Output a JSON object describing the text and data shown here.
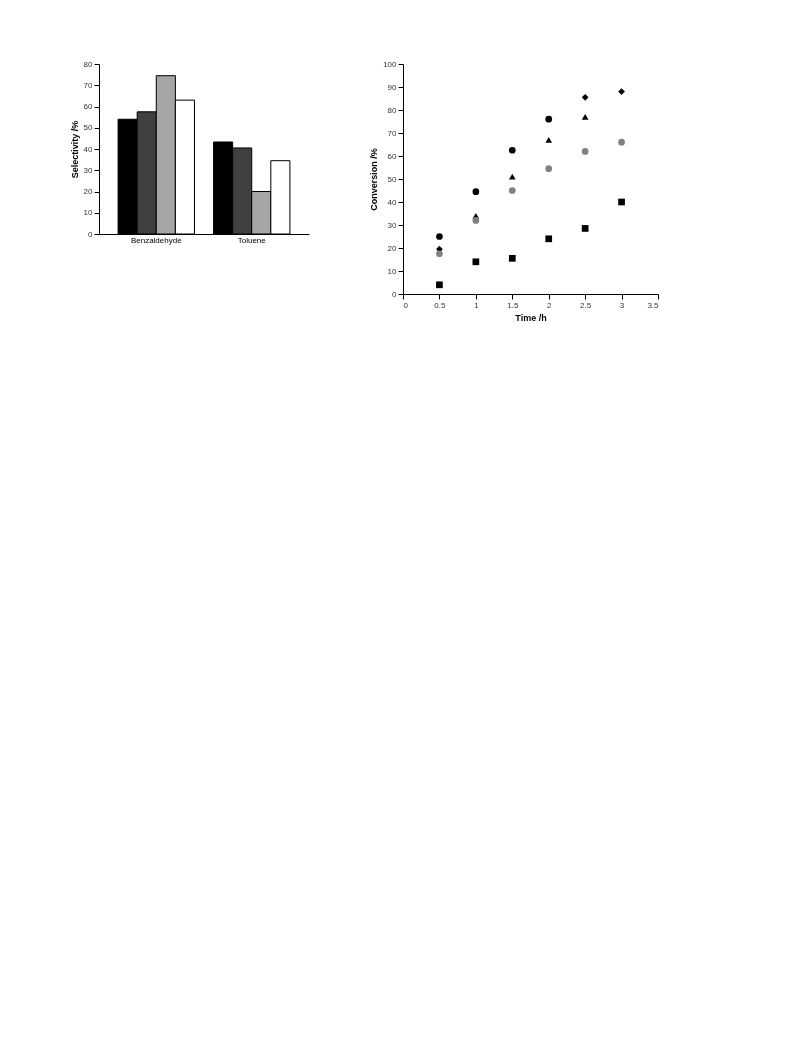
{
  "chart_data": [
    {
      "type": "bar",
      "ylabel": "Selectivity /%",
      "categories": [
        "Benzaldehyde",
        "Toluene"
      ],
      "series": [
        {
          "color": "#000000",
          "values": [
            54,
            43.3
          ]
        },
        {
          "color": "#404040",
          "values": [
            57.5,
            40.5
          ]
        },
        {
          "color": "#a6a6a6",
          "values": [
            74.5,
            20
          ]
        },
        {
          "color": "#ffffff",
          "values": [
            63,
            34.5
          ]
        }
      ],
      "ylim": [
        0,
        80
      ],
      "yticks": [
        0,
        10,
        20,
        30,
        40,
        50,
        60,
        70,
        80
      ],
      "grid": false
    },
    {
      "type": "scatter",
      "xlabel": "Time /h",
      "ylabel": "Conversion /%",
      "x": [
        0.5,
        1,
        1.5,
        2,
        2.5,
        3
      ],
      "series": [
        {
          "color": "#000000",
          "marker": "diamond",
          "values": [
            19.5,
            null,
            null,
            null,
            85.5,
            88
          ]
        },
        {
          "color": "#000000",
          "marker": "circle",
          "values": [
            25,
            44.5,
            62.5,
            76,
            null,
            null
          ]
        },
        {
          "color": "#000000",
          "marker": "triangle",
          "values": [
            null,
            34,
            51,
            67,
            77,
            null
          ]
        },
        {
          "color": "#808080",
          "marker": "circle",
          "values": [
            17.5,
            32,
            45,
            54.5,
            62,
            66
          ]
        },
        {
          "color": "#000000",
          "marker": "square",
          "values": [
            4,
            14,
            15.5,
            24,
            28.5,
            40
          ]
        }
      ],
      "xlim": [
        0,
        3.5
      ],
      "xticks": [
        0,
        0.5,
        1,
        1.5,
        2,
        2.5,
        3,
        3.5
      ],
      "ylim": [
        0,
        100
      ],
      "yticks": [
        0,
        10,
        20,
        30,
        40,
        50,
        60,
        70,
        80,
        90,
        100
      ],
      "grid": false
    }
  ]
}
